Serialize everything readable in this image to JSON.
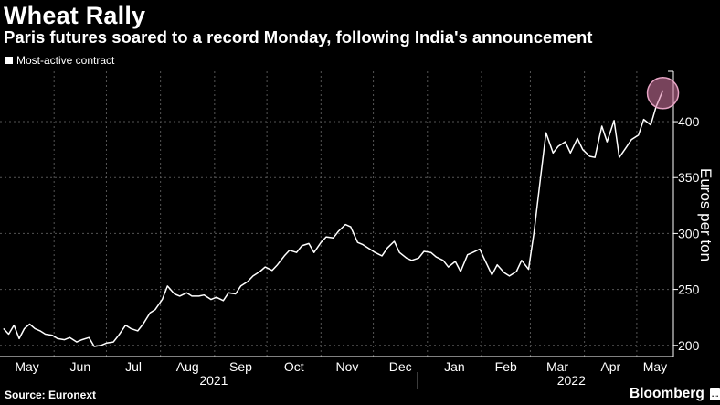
{
  "header": {
    "title": "Wheat Rally",
    "subtitle": "Paris futures soared to a record Monday, following India's announcement"
  },
  "footer": {
    "source": "Source: Euronext",
    "brand": "Bloomberg",
    "brand_badge": "..."
  },
  "colors": {
    "background": "#000000",
    "line": "#ffffff",
    "highlight_circle": "#d97aa6",
    "grid": "#555555"
  },
  "chart_data": {
    "type": "line",
    "title": "Wheat Rally",
    "subtitle": "Paris futures soared to a record Monday, following India's announcement",
    "ylabel": "Euros per ton",
    "y_axis_position": "right",
    "ylim": [
      190,
      445
    ],
    "yticks": [
      200,
      250,
      300,
      350,
      400
    ],
    "grid": true,
    "legend": {
      "position": "top-left",
      "entries": [
        "Most-active contract"
      ]
    },
    "x_month_labels": [
      "May",
      "Jun",
      "Jul",
      "Aug",
      "Sep",
      "Oct",
      "Nov",
      "Dec",
      "Jan",
      "Feb",
      "Mar",
      "Apr",
      "May"
    ],
    "x_year_labels": [
      "2021",
      "2022"
    ],
    "highlight": {
      "date": "2022-05-16",
      "value": 428,
      "note": "record high"
    },
    "series": [
      {
        "name": "Most-active contract",
        "x": [
          "2021-05-03",
          "2021-05-06",
          "2021-05-09",
          "2021-05-12",
          "2021-05-15",
          "2021-05-18",
          "2021-05-21",
          "2021-05-24",
          "2021-05-27",
          "2021-05-31",
          "2021-06-03",
          "2021-06-07",
          "2021-06-10",
          "2021-06-14",
          "2021-06-17",
          "2021-06-21",
          "2021-06-24",
          "2021-06-28",
          "2021-07-01",
          "2021-07-05",
          "2021-07-08",
          "2021-07-12",
          "2021-07-15",
          "2021-07-19",
          "2021-07-22",
          "2021-07-26",
          "2021-07-29",
          "2021-08-02",
          "2021-08-05",
          "2021-08-09",
          "2021-08-12",
          "2021-08-16",
          "2021-08-19",
          "2021-08-23",
          "2021-08-26",
          "2021-08-30",
          "2021-09-02",
          "2021-09-06",
          "2021-09-09",
          "2021-09-13",
          "2021-09-16",
          "2021-09-20",
          "2021-09-23",
          "2021-09-27",
          "2021-09-30",
          "2021-10-04",
          "2021-10-07",
          "2021-10-11",
          "2021-10-14",
          "2021-10-18",
          "2021-10-21",
          "2021-10-25",
          "2021-10-28",
          "2021-11-01",
          "2021-11-04",
          "2021-11-08",
          "2021-11-11",
          "2021-11-15",
          "2021-11-18",
          "2021-11-22",
          "2021-11-25",
          "2021-11-29",
          "2021-12-02",
          "2021-12-06",
          "2021-12-09",
          "2021-12-13",
          "2021-12-16",
          "2021-12-20",
          "2021-12-23",
          "2021-12-27",
          "2021-12-30",
          "2022-01-03",
          "2022-01-06",
          "2022-01-10",
          "2022-01-13",
          "2022-01-17",
          "2022-01-20",
          "2022-01-24",
          "2022-01-27",
          "2022-01-31",
          "2022-02-03",
          "2022-02-07",
          "2022-02-10",
          "2022-02-14",
          "2022-02-17",
          "2022-02-21",
          "2022-02-24",
          "2022-02-28",
          "2022-03-03",
          "2022-03-07",
          "2022-03-10",
          "2022-03-14",
          "2022-03-17",
          "2022-03-21",
          "2022-03-24",
          "2022-03-28",
          "2022-03-31",
          "2022-04-04",
          "2022-04-07",
          "2022-04-11",
          "2022-04-14",
          "2022-04-18",
          "2022-04-21",
          "2022-04-25",
          "2022-04-28",
          "2022-05-02",
          "2022-05-05",
          "2022-05-09",
          "2022-05-12",
          "2022-05-16"
        ],
        "values": [
          215,
          210,
          218,
          206,
          215,
          219,
          215,
          213,
          210,
          209,
          206,
          205,
          207,
          203,
          205,
          207,
          199,
          200,
          202,
          203,
          209,
          218,
          215,
          213,
          219,
          229,
          232,
          241,
          253,
          246,
          244,
          247,
          244,
          244,
          245,
          241,
          243,
          240,
          247,
          246,
          253,
          257,
          262,
          266,
          270,
          267,
          272,
          280,
          285,
          283,
          289,
          291,
          283,
          292,
          297,
          296,
          302,
          308,
          306,
          292,
          290,
          286,
          283,
          280,
          287,
          293,
          283,
          278,
          276,
          278,
          284,
          283,
          279,
          276,
          270,
          275,
          266,
          281,
          283,
          286,
          276,
          263,
          272,
          265,
          262,
          266,
          276,
          268,
          300,
          352,
          390,
          372,
          378,
          382,
          372,
          385,
          375,
          369,
          368,
          396,
          382,
          401,
          368,
          377,
          384,
          388,
          402,
          397,
          413,
          428
        ]
      }
    ]
  }
}
